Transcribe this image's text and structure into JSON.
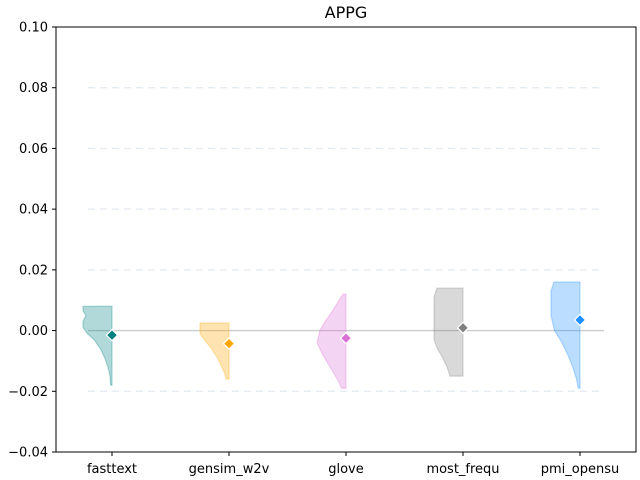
{
  "chart_data": {
    "type": "violin",
    "title": "APPG",
    "xlabel": "",
    "ylabel": "",
    "ylim": [
      -0.04,
      0.1
    ],
    "yticks": [
      -0.04,
      -0.02,
      0.0,
      0.02,
      0.04,
      0.06,
      0.08,
      0.1
    ],
    "ytick_labels": [
      "−0.04",
      "−0.02",
      "0.00",
      "0.02",
      "0.04",
      "0.06",
      "0.08",
      "0.10"
    ],
    "grid_y": true,
    "categories": [
      "fasttext",
      "gensim_w2v",
      "glove",
      "most_frequ",
      "pmi_opensu"
    ],
    "series": [
      {
        "category": "fasttext",
        "color": "#008080",
        "marker": -0.0015,
        "range": [
          -0.018,
          0.008
        ],
        "profile": [
          [
            0.008,
            1.0
          ],
          [
            0.0065,
            1.0
          ],
          [
            0.005,
            0.9
          ],
          [
            0.003,
            1.0
          ],
          [
            0.001,
            1.0
          ],
          [
            -0.001,
            0.85
          ],
          [
            -0.003,
            0.62
          ],
          [
            -0.006,
            0.4
          ],
          [
            -0.009,
            0.25
          ],
          [
            -0.012,
            0.14
          ],
          [
            -0.015,
            0.07
          ],
          [
            -0.018,
            0.05
          ]
        ]
      },
      {
        "category": "gensim_w2v",
        "color": "#FFA500",
        "marker": -0.0043,
        "range": [
          -0.016,
          0.0025
        ],
        "profile": [
          [
            0.0025,
            1.0
          ],
          [
            0.001,
            1.0
          ],
          [
            -0.001,
            1.0
          ],
          [
            -0.003,
            0.85
          ],
          [
            -0.006,
            0.6
          ],
          [
            -0.009,
            0.4
          ],
          [
            -0.012,
            0.25
          ],
          [
            -0.014,
            0.15
          ],
          [
            -0.016,
            0.1
          ]
        ]
      },
      {
        "category": "glove",
        "color": "#DA70D6",
        "marker": -0.0025,
        "range": [
          -0.019,
          0.012
        ],
        "profile": [
          [
            0.012,
            0.1
          ],
          [
            0.009,
            0.3
          ],
          [
            0.006,
            0.5
          ],
          [
            0.003,
            0.72
          ],
          [
            0.0,
            0.9
          ],
          [
            -0.004,
            1.0
          ],
          [
            -0.008,
            0.8
          ],
          [
            -0.012,
            0.55
          ],
          [
            -0.016,
            0.3
          ],
          [
            -0.019,
            0.15
          ]
        ]
      },
      {
        "category": "most_frequ",
        "color": "#808080",
        "marker": 0.0009,
        "range": [
          -0.015,
          0.014
        ],
        "profile": [
          [
            0.014,
            0.9
          ],
          [
            0.011,
            1.0
          ],
          [
            0.008,
            1.0
          ],
          [
            0.004,
            1.0
          ],
          [
            0.0,
            1.0
          ],
          [
            -0.003,
            1.0
          ],
          [
            -0.006,
            0.88
          ],
          [
            -0.009,
            0.7
          ],
          [
            -0.012,
            0.55
          ],
          [
            -0.015,
            0.45
          ]
        ]
      },
      {
        "category": "pmi_opensu",
        "color": "#1E90FF",
        "marker": 0.0035,
        "range": [
          -0.019,
          0.016
        ],
        "profile": [
          [
            0.016,
            0.9
          ],
          [
            0.013,
            1.0
          ],
          [
            0.009,
            1.0
          ],
          [
            0.005,
            1.0
          ],
          [
            0.0,
            0.88
          ],
          [
            -0.004,
            0.62
          ],
          [
            -0.008,
            0.42
          ],
          [
            -0.012,
            0.25
          ],
          [
            -0.016,
            0.12
          ],
          [
            -0.019,
            0.06
          ]
        ]
      }
    ]
  }
}
